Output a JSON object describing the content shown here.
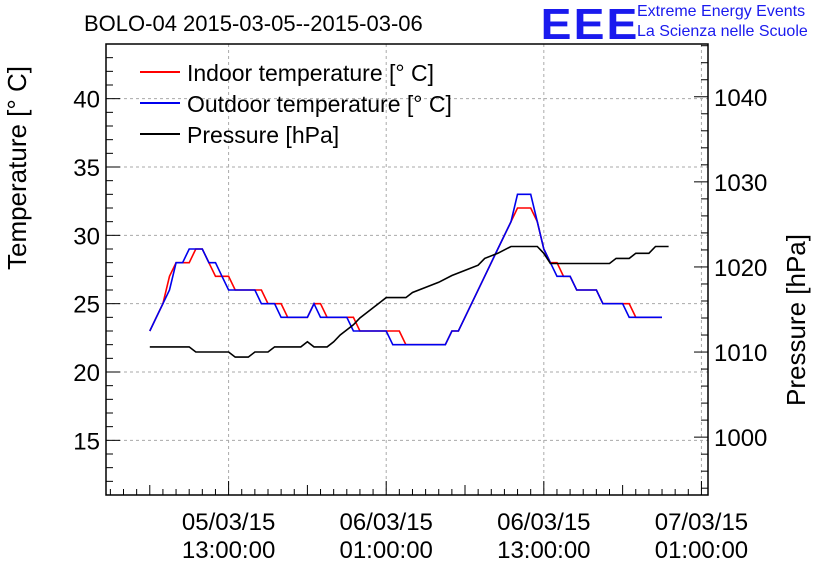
{
  "logo": {
    "mark": "EEE",
    "line1": "Extreme Energy Events",
    "line2": "La Scienza nelle Scuole",
    "color": "#1a1aee"
  },
  "chart_data": {
    "type": "line",
    "title": "BOLO-04 2015-03-05--2015-03-06",
    "ylabel": "Temperature [° C]",
    "y2label": "Pressure [hPa]",
    "ylim": [
      11,
      44
    ],
    "y2lim": [
      993.2,
      1046.2
    ],
    "xlim": [
      "2015-03-05 03:40",
      "2015-03-07 01:30"
    ],
    "yticks": [
      15,
      20,
      25,
      30,
      35,
      40
    ],
    "y2ticks": [
      1000,
      1010,
      1020,
      1030,
      1040
    ],
    "xticks": [
      {
        "x": "2015-03-05 13:00",
        "line1": "05/03/15",
        "line2": "13:00:00"
      },
      {
        "x": "2015-03-06 01:00",
        "line1": "06/03/15",
        "line2": "01:00:00"
      },
      {
        "x": "2015-03-06 13:00",
        "line1": "06/03/15",
        "line2": "13:00:00"
      },
      {
        "x": "2015-03-07 01:00",
        "line1": "07/03/15",
        "line2": "01:00:00"
      }
    ],
    "grid": true,
    "legend_position": "top-left",
    "series": [
      {
        "name": "Indoor temperature [° C]",
        "axis": "left",
        "color": "#ff0000",
        "points": [
          [
            "2015-03-05 07:00",
            23
          ],
          [
            "2015-03-05 07:30",
            24
          ],
          [
            "2015-03-05 08:00",
            25
          ],
          [
            "2015-03-05 08:30",
            27
          ],
          [
            "2015-03-05 09:00",
            28
          ],
          [
            "2015-03-05 10:00",
            28
          ],
          [
            "2015-03-05 10:30",
            29
          ],
          [
            "2015-03-05 11:00",
            29
          ],
          [
            "2015-03-05 11:30",
            28
          ],
          [
            "2015-03-05 12:00",
            27
          ],
          [
            "2015-03-05 13:00",
            27
          ],
          [
            "2015-03-05 13:30",
            26
          ],
          [
            "2015-03-05 15:30",
            26
          ],
          [
            "2015-03-05 16:00",
            25
          ],
          [
            "2015-03-05 17:00",
            25
          ],
          [
            "2015-03-05 17:30",
            24
          ],
          [
            "2015-03-05 19:00",
            24
          ],
          [
            "2015-03-05 19:30",
            25
          ],
          [
            "2015-03-05 20:00",
            25
          ],
          [
            "2015-03-05 20:30",
            24
          ],
          [
            "2015-03-05 22:30",
            24
          ],
          [
            "2015-03-05 23:00",
            23
          ],
          [
            "2015-03-06 02:00",
            23
          ],
          [
            "2015-03-06 02:30",
            22
          ],
          [
            "2015-03-06 05:30",
            22
          ],
          [
            "2015-03-06 06:00",
            23
          ],
          [
            "2015-03-06 06:30",
            23
          ],
          [
            "2015-03-06 08:30",
            27
          ],
          [
            "2015-03-06 09:30",
            29
          ],
          [
            "2015-03-06 10:30",
            31
          ],
          [
            "2015-03-06 11:00",
            32
          ],
          [
            "2015-03-06 12:00",
            32
          ],
          [
            "2015-03-06 12:30",
            31
          ],
          [
            "2015-03-06 13:00",
            29
          ],
          [
            "2015-03-06 13:30",
            28
          ],
          [
            "2015-03-06 14:00",
            28
          ],
          [
            "2015-03-06 14:30",
            27
          ],
          [
            "2015-03-06 15:00",
            27
          ],
          [
            "2015-03-06 15:30",
            26
          ],
          [
            "2015-03-06 17:00",
            26
          ],
          [
            "2015-03-06 17:30",
            25
          ],
          [
            "2015-03-06 19:30",
            25
          ],
          [
            "2015-03-06 20:00",
            24
          ],
          [
            "2015-03-06 22:00",
            24
          ]
        ]
      },
      {
        "name": "Outdoor temperature [° C]",
        "axis": "left",
        "color": "#0000ee",
        "points": [
          [
            "2015-03-05 07:00",
            23
          ],
          [
            "2015-03-05 08:00",
            25
          ],
          [
            "2015-03-05 08:30",
            26
          ],
          [
            "2015-03-05 09:00",
            28
          ],
          [
            "2015-03-05 09:30",
            28
          ],
          [
            "2015-03-05 10:00",
            29
          ],
          [
            "2015-03-05 11:00",
            29
          ],
          [
            "2015-03-05 11:30",
            28
          ],
          [
            "2015-03-05 12:00",
            28
          ],
          [
            "2015-03-05 12:30",
            27
          ],
          [
            "2015-03-05 13:00",
            26
          ],
          [
            "2015-03-05 15:00",
            26
          ],
          [
            "2015-03-05 15:30",
            25
          ],
          [
            "2015-03-05 16:30",
            25
          ],
          [
            "2015-03-05 17:00",
            24
          ],
          [
            "2015-03-05 19:00",
            24
          ],
          [
            "2015-03-05 19:30",
            25
          ],
          [
            "2015-03-05 20:00",
            24
          ],
          [
            "2015-03-05 22:00",
            24
          ],
          [
            "2015-03-05 22:30",
            23
          ],
          [
            "2015-03-06 01:00",
            23
          ],
          [
            "2015-03-06 01:30",
            22
          ],
          [
            "2015-03-06 05:30",
            22
          ],
          [
            "2015-03-06 06:00",
            23
          ],
          [
            "2015-03-06 06:30",
            23
          ],
          [
            "2015-03-06 08:30",
            27
          ],
          [
            "2015-03-06 09:30",
            29
          ],
          [
            "2015-03-06 10:30",
            31
          ],
          [
            "2015-03-06 11:00",
            33
          ],
          [
            "2015-03-06 12:00",
            33
          ],
          [
            "2015-03-06 12:30",
            31
          ],
          [
            "2015-03-06 13:00",
            29
          ],
          [
            "2015-03-06 13:30",
            28
          ],
          [
            "2015-03-06 14:00",
            27
          ],
          [
            "2015-03-06 15:00",
            27
          ],
          [
            "2015-03-06 15:30",
            26
          ],
          [
            "2015-03-06 17:00",
            26
          ],
          [
            "2015-03-06 17:30",
            25
          ],
          [
            "2015-03-06 19:00",
            25
          ],
          [
            "2015-03-06 19:30",
            24
          ],
          [
            "2015-03-06 22:00",
            24
          ]
        ]
      },
      {
        "name": "Pressure [hPa]",
        "axis": "right",
        "color": "#000000",
        "points": [
          [
            "2015-03-05 07:00",
            1010.6
          ],
          [
            "2015-03-05 10:00",
            1010.6
          ],
          [
            "2015-03-05 10:30",
            1010.0
          ],
          [
            "2015-03-05 13:00",
            1010.0
          ],
          [
            "2015-03-05 13:30",
            1009.4
          ],
          [
            "2015-03-05 14:30",
            1009.4
          ],
          [
            "2015-03-05 15:00",
            1010.0
          ],
          [
            "2015-03-05 16:00",
            1010.0
          ],
          [
            "2015-03-05 16:30",
            1010.6
          ],
          [
            "2015-03-05 18:30",
            1010.6
          ],
          [
            "2015-03-05 19:00",
            1011.2
          ],
          [
            "2015-03-05 19:30",
            1010.6
          ],
          [
            "2015-03-05 20:30",
            1010.6
          ],
          [
            "2015-03-05 21:00",
            1011.2
          ],
          [
            "2015-03-05 21:30",
            1012.0
          ],
          [
            "2015-03-05 22:00",
            1012.6
          ],
          [
            "2015-03-05 22:30",
            1013.2
          ],
          [
            "2015-03-05 23:00",
            1014.0
          ],
          [
            "2015-03-05 23:30",
            1014.6
          ],
          [
            "2015-03-06 00:00",
            1015.2
          ],
          [
            "2015-03-06 00:30",
            1015.8
          ],
          [
            "2015-03-06 01:00",
            1016.4
          ],
          [
            "2015-03-06 02:30",
            1016.4
          ],
          [
            "2015-03-06 03:00",
            1017.0
          ],
          [
            "2015-03-06 04:00",
            1017.6
          ],
          [
            "2015-03-06 05:00",
            1018.2
          ],
          [
            "2015-03-06 06:00",
            1019.0
          ],
          [
            "2015-03-06 07:00",
            1019.6
          ],
          [
            "2015-03-06 08:00",
            1020.2
          ],
          [
            "2015-03-06 08:30",
            1021.0
          ],
          [
            "2015-03-06 09:30",
            1021.6
          ],
          [
            "2015-03-06 10:30",
            1022.4
          ],
          [
            "2015-03-06 12:30",
            1022.4
          ],
          [
            "2015-03-06 13:00",
            1021.6
          ],
          [
            "2015-03-06 13:30",
            1020.4
          ],
          [
            "2015-03-06 18:00",
            1020.4
          ],
          [
            "2015-03-06 18:30",
            1021.0
          ],
          [
            "2015-03-06 19:30",
            1021.0
          ],
          [
            "2015-03-06 20:00",
            1021.6
          ],
          [
            "2015-03-06 21:00",
            1021.6
          ],
          [
            "2015-03-06 21:30",
            1022.4
          ],
          [
            "2015-03-06 22:30",
            1022.4
          ]
        ]
      }
    ]
  }
}
